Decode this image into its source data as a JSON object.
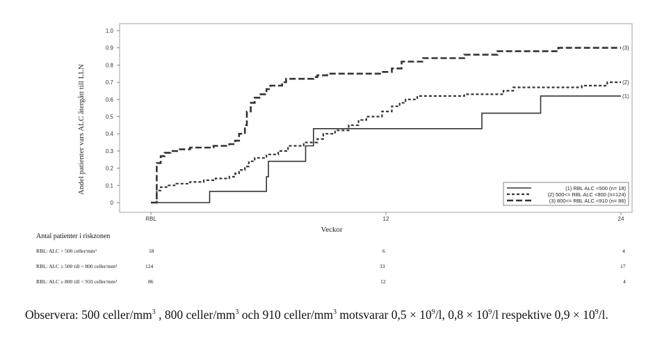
{
  "chart_data": {
    "type": "line",
    "subtype": "step",
    "xlabel": "Veckor",
    "ylabel": "Andel patienter vars ALC återgått till LLN",
    "xlim": [
      0,
      24
    ],
    "ylim": [
      0,
      1.0
    ],
    "x_ticks": [
      {
        "value": 0,
        "label": "RBL"
      },
      {
        "value": 12,
        "label": "12"
      },
      {
        "value": 24,
        "label": "24"
      }
    ],
    "y_ticks": [
      "0",
      "0.1",
      "0.2",
      "0.3",
      "0.4",
      "0.5",
      "0.6",
      "0.7",
      "0.8",
      "0.9",
      "1.0"
    ],
    "grid": false,
    "legend_position": "bottom-right",
    "series": [
      {
        "name": "(1) RBL ALC <500 (n= 18)",
        "end_label": "(1)",
        "style": "solid",
        "steps": [
          [
            0,
            0
          ],
          [
            3.1,
            0.065
          ],
          [
            5.9,
            0.15
          ],
          [
            5.9,
            0.15
          ],
          [
            5.9,
            0.15
          ],
          [
            5.9,
            0.15
          ],
          [
            6.0,
            0.15
          ],
          [
            6.0,
            0.15
          ],
          [
            6.0,
            0.15
          ],
          [
            6.0,
            0.15
          ],
          [
            6.0,
            0.15
          ],
          [
            6.0,
            0.15
          ],
          [
            6.0,
            0.15
          ],
          [
            6.0,
            0.15
          ],
          [
            6.0,
            0.15
          ],
          [
            6.0,
            0.15
          ],
          [
            6.0,
            0.15
          ],
          [
            6.0,
            0.15
          ],
          [
            6.0,
            0.15
          ],
          [
            6.0,
            0.15
          ],
          [
            6.0,
            0.15
          ],
          [
            6.0,
            0.15
          ],
          [
            6.0,
            0.15
          ],
          [
            6.0,
            0.15
          ],
          [
            6.0,
            0.15
          ],
          [
            6.0,
            0.15
          ],
          [
            6.0,
            0.15
          ],
          [
            6.0,
            0.15
          ],
          [
            6.0,
            0.15
          ],
          [
            6.0,
            0.15
          ],
          [
            6.0,
            0.15
          ],
          [
            6.0,
            0.15
          ],
          [
            6.0,
            0.15
          ],
          [
            6.0,
            0.15
          ],
          [
            6.0,
            0.15
          ],
          [
            6.0,
            0.15
          ],
          [
            6.0,
            0.15
          ],
          [
            6.0,
            0.15
          ],
          [
            6.0,
            0.15
          ],
          [
            6.0,
            0.15
          ],
          [
            6.0,
            0.15
          ],
          [
            6.0,
            0.15
          ],
          [
            6.0,
            0.15
          ],
          [
            6.0,
            0.15
          ],
          [
            6.0,
            0.15
          ],
          [
            6.0,
            0.15
          ],
          [
            6.0,
            0.15
          ],
          [
            6.0,
            0.15
          ],
          [
            6.0,
            0.15
          ],
          [
            6.0,
            0.15
          ],
          [
            6.0,
            0.15
          ],
          [
            6.0,
            0.15
          ],
          [
            6.0,
            0.15
          ],
          [
            6.0,
            0.15
          ],
          [
            6.0,
            0.15
          ],
          [
            6.0,
            0.15
          ],
          [
            6.0,
            0.15
          ],
          [
            6.0,
            0.15
          ],
          [
            6.0,
            0.15
          ],
          [
            6.0,
            0.15
          ],
          [
            6.0,
            0.15
          ],
          [
            6.0,
            0.15
          ],
          [
            6.0,
            0.15
          ],
          [
            6.0,
            0.15
          ],
          [
            6.0,
            0.15
          ],
          [
            6.0,
            0.15
          ],
          [
            6.0,
            0.15
          ],
          [
            6.0,
            0.15
          ],
          [
            6.0,
            0.15
          ],
          [
            6.0,
            0.15
          ],
          [
            6.0,
            0.15
          ],
          [
            6.0,
            0.15
          ],
          [
            6.0,
            0.15
          ],
          [
            6.0,
            0.15
          ],
          [
            6.0,
            0.15
          ],
          [
            6.0,
            0.15
          ],
          [
            6.0,
            0.15
          ],
          [
            6.0,
            0.15
          ],
          [
            6.0,
            0.15
          ],
          [
            6.0,
            0.15
          ],
          [
            6.0,
            0.15
          ],
          [
            6.0,
            0.15
          ],
          [
            6.0,
            0.15
          ],
          [
            6.0,
            0.15
          ],
          [
            6.0,
            0.15
          ],
          [
            6.0,
            0.15
          ],
          [
            6.0,
            0.15
          ],
          [
            6.0,
            0.15
          ],
          [
            6.0,
            0.15
          ],
          [
            6.0,
            0.15
          ],
          [
            6.0,
            0.15
          ],
          [
            6.0,
            0.15
          ],
          [
            6.0,
            0.15
          ],
          [
            6.0,
            0.15
          ],
          [
            6.0,
            0.15
          ],
          [
            6.0,
            0.15
          ],
          [
            6.0,
            0.15
          ],
          [
            6.0,
            0.15
          ],
          [
            6.0,
            0.15
          ],
          [
            6.0,
            0.15
          ],
          [
            6.0,
            0.15
          ],
          [
            6.0,
            0.15
          ],
          [
            6.0,
            0.15
          ],
          [
            6.0,
            0.15
          ],
          [
            6.0,
            0.15
          ],
          [
            6.0,
            0.15
          ],
          [
            6.0,
            0.15
          ],
          [
            6.0,
            0.15
          ],
          [
            6.0,
            0.15
          ],
          [
            6.0,
            0.15
          ],
          [
            6.0,
            0.15
          ],
          [
            6.0,
            0.15
          ],
          [
            6.0,
            0.15
          ],
          [
            6.0,
            0.15
          ],
          [
            6.0,
            0.15
          ],
          [
            6.0,
            0.15
          ],
          [
            6.0,
            0.15
          ],
          [
            6.0,
            0.15
          ],
          [
            6.0,
            0.15
          ],
          [
            6.0,
            0.15
          ],
          [
            6.0,
            0.15
          ],
          [
            6.0,
            0.15
          ],
          [
            6.0,
            0.15
          ],
          [
            6.0,
            0.15
          ],
          [
            6.0,
            0.15
          ],
          [
            6.0,
            0.15
          ],
          [
            6.0,
            0.15
          ],
          [
            6.0,
            0.15
          ],
          [
            6.0,
            0.15
          ]
        ]
      }
    ]
  }
}
